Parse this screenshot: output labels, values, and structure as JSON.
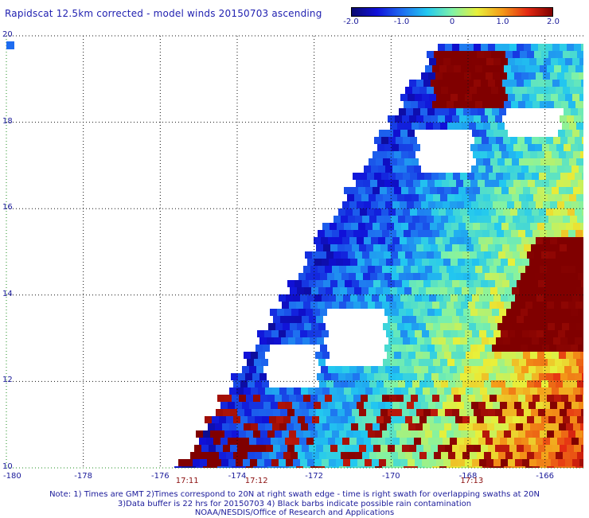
{
  "title": "Rapidscat 12.5km corrected - model winds 20150703 ascending",
  "colorbar": {
    "ticks": [
      "-2.0",
      "-1.0",
      "0",
      "1.0",
      "2.0"
    ],
    "tick_values": [
      -2.0,
      -1.0,
      0,
      1.0,
      2.0
    ],
    "range": [
      -2.0,
      2.0
    ],
    "colors": [
      "#0a0a6e",
      "#1010d8",
      "#1e6cf0",
      "#22c8f0",
      "#7ef2a8",
      "#e8f03a",
      "#f49a18",
      "#e42a12",
      "#800000"
    ]
  },
  "map": {
    "lon_range": [
      -180,
      -165
    ],
    "lat_range": [
      10,
      20
    ],
    "lon_labels": [
      "-180",
      "-178",
      "-176",
      "-174",
      "-172",
      "-170",
      "-168",
      "-166"
    ],
    "lon_values": [
      -180,
      -178,
      -176,
      -174,
      -172,
      -170,
      -168,
      -166
    ],
    "lat_labels": [
      "10",
      "12",
      "14",
      "16",
      "18",
      "20"
    ],
    "lat_values": [
      10,
      12,
      14,
      16,
      18,
      20
    ],
    "swath_times": [
      {
        "label": "17:11",
        "lon": -175.3
      },
      {
        "label": "17:12",
        "lon": -173.5
      },
      {
        "label": "17:13",
        "lon": -167.9
      }
    ],
    "grid_color": "#1e8c1e"
  },
  "notes": [
    "Note: 1) Times are GMT 2)Times correspond to 20N at right swath edge - time is right swath for overlapping swaths at 20N",
    "3)Data buffer is 22 hrs for 20150703 4) Black barbs indicate possible rain contamination",
    "NOAA/NESDIS/Office of Research and Applications"
  ]
}
